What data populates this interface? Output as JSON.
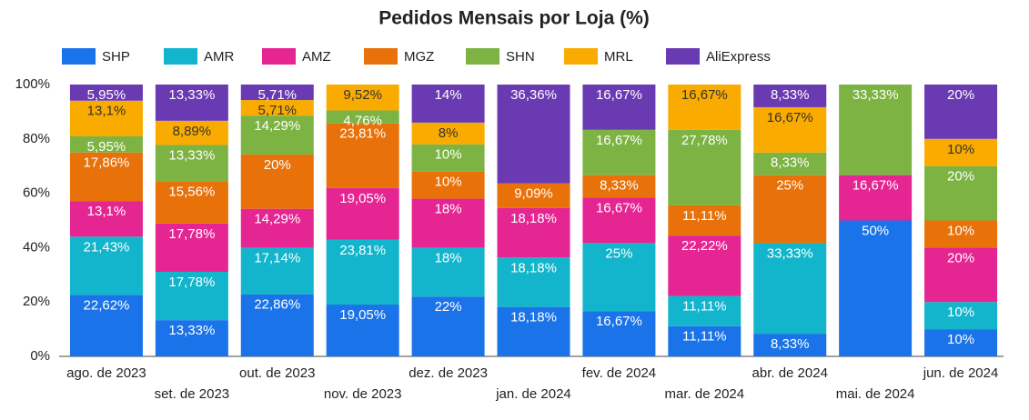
{
  "chart_data": {
    "type": "stacked_bar_100",
    "title": "Pedidos Mensais por Loja (%)",
    "categories": [
      "ago. de 2023",
      "set. de 2023",
      "out. de 2023",
      "nov. de 2023",
      "dez. de 2023",
      "jan. de 2024",
      "fev. de 2024",
      "mar. de 2024",
      "abr. de 2024",
      "mai. de 2024",
      "jun. de 2024"
    ],
    "ylim": [
      0,
      100
    ],
    "yticks": [
      {
        "value": 0,
        "label": "0%"
      },
      {
        "value": 20,
        "label": "20%"
      },
      {
        "value": 40,
        "label": "40%"
      },
      {
        "value": 60,
        "label": "60%"
      },
      {
        "value": 80,
        "label": "80%"
      },
      {
        "value": 100,
        "label": "100%"
      }
    ],
    "legend_position": "top",
    "series": [
      {
        "name": "SHP",
        "color": "#1a73e8",
        "label_color": "#ffffff",
        "values": [
          22.62,
          13.33,
          22.86,
          19.05,
          22,
          18.18,
          16.67,
          11.11,
          8.33,
          50,
          10
        ],
        "value_labels": [
          "22,62%",
          "13,33%",
          "22,86%",
          "19,05%",
          "22%",
          "18,18%",
          "16,67%",
          "11,11%",
          "8,33%",
          "50%",
          "10%"
        ]
      },
      {
        "name": "AMR",
        "color": "#12b5cb",
        "label_color": "#ffffff",
        "values": [
          21.43,
          17.78,
          17.14,
          23.81,
          18,
          18.18,
          25,
          11.11,
          33.33,
          null,
          10
        ],
        "value_labels": [
          "21,43%",
          "17,78%",
          "17,14%",
          "23,81%",
          "18%",
          "18,18%",
          "25%",
          "11,11%",
          "33,33%",
          null,
          "10%"
        ]
      },
      {
        "name": "AMZ",
        "color": "#e52592",
        "label_color": "#ffffff",
        "values": [
          13.1,
          17.78,
          14.29,
          19.05,
          18,
          18.18,
          16.67,
          22.22,
          null,
          16.67,
          20
        ],
        "value_labels": [
          "13,1%",
          "17,78%",
          "14,29%",
          "19,05%",
          "18%",
          "18,18%",
          "16,67%",
          "22,22%",
          null,
          "16,67%",
          "20%"
        ]
      },
      {
        "name": "MGZ",
        "color": "#e8710a",
        "label_color": "#ffffff",
        "values": [
          17.86,
          15.56,
          20,
          23.81,
          10,
          9.09,
          8.33,
          11.11,
          25,
          null,
          10
        ],
        "value_labels": [
          "17,86%",
          "15,56%",
          "20%",
          "23,81%",
          "10%",
          "9,09%",
          "8,33%",
          "11,11%",
          "25%",
          null,
          "10%"
        ]
      },
      {
        "name": "SHN",
        "color": "#7cb342",
        "label_color": "#ffffff",
        "values": [
          5.95,
          13.33,
          14.29,
          4.76,
          10,
          null,
          16.67,
          27.78,
          8.33,
          33.33,
          20
        ],
        "value_labels": [
          "5,95%",
          "13,33%",
          "14,29%",
          "4,76%",
          "10%",
          null,
          "16,67%",
          "27,78%",
          "8,33%",
          "33,33%",
          "20%"
        ]
      },
      {
        "name": "MRL",
        "color": "#f9ab00",
        "label_color": "#333333",
        "values": [
          13.1,
          8.89,
          5.71,
          9.52,
          8,
          null,
          null,
          16.67,
          16.67,
          null,
          10
        ],
        "value_labels": [
          "13,1%",
          "8,89%",
          "5,71%",
          "9,52%",
          "8%",
          null,
          null,
          "16,67%",
          "16,67%",
          null,
          "10%"
        ]
      },
      {
        "name": "AliExpress",
        "color": "#6a3ab2",
        "label_color": "#ffffff",
        "values": [
          5.95,
          13.33,
          5.71,
          null,
          14,
          36.36,
          16.67,
          null,
          8.33,
          null,
          20
        ],
        "value_labels": [
          "5,95%",
          "13,33%",
          "5,71%",
          null,
          "14%",
          "36,36%",
          "16,67%",
          null,
          "8,33%",
          null,
          "20%"
        ]
      }
    ]
  }
}
